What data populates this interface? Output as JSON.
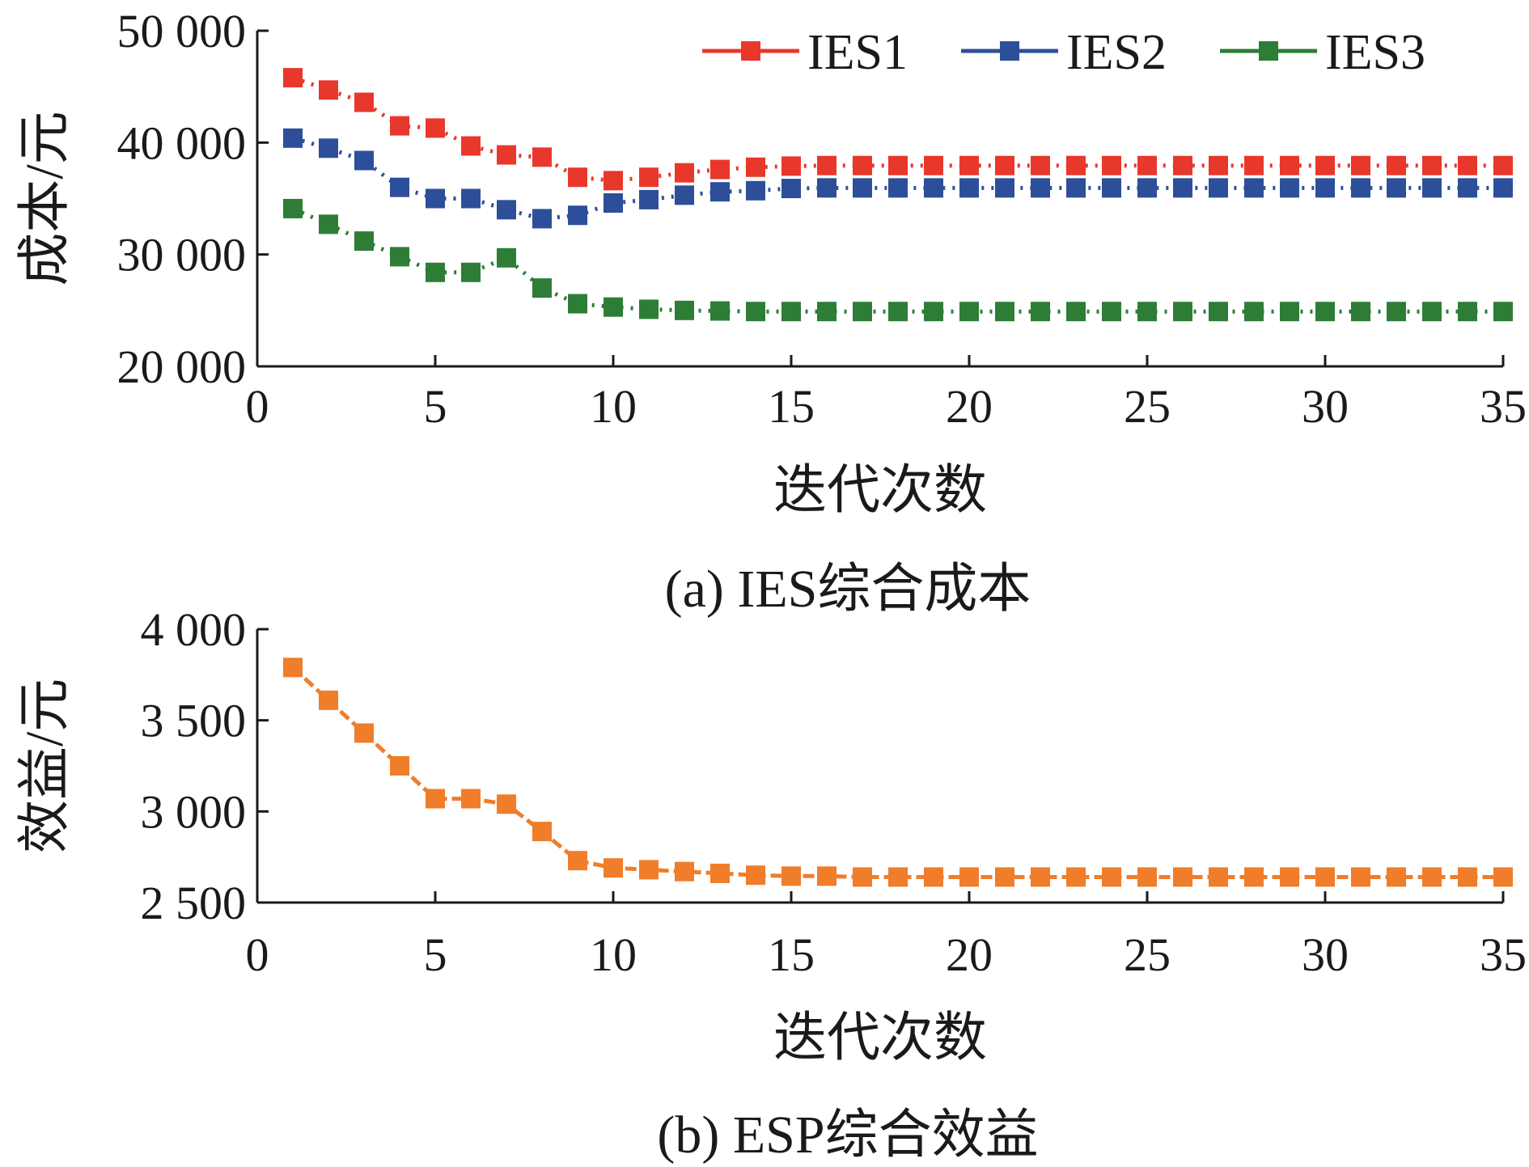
{
  "chart_data": [
    {
      "type": "line",
      "caption": "(a) IES综合成本",
      "xlabel": "迭代次数",
      "ylabel": "成本/元",
      "xlim": [
        0,
        35
      ],
      "ylim": [
        20000,
        50000
      ],
      "x_ticks": [
        "0",
        "5",
        "10",
        "15",
        "20",
        "25",
        "30",
        "35"
      ],
      "y_ticks": [
        "20 000",
        "30 000",
        "40 000",
        "50 000"
      ],
      "legend_position": "top-right",
      "grid": false,
      "x": [
        1,
        2,
        3,
        4,
        5,
        6,
        7,
        8,
        9,
        10,
        11,
        12,
        13,
        14,
        15,
        16,
        17,
        18,
        19,
        20,
        21,
        22,
        23,
        24,
        25,
        26,
        27,
        28,
        29,
        30,
        31,
        32,
        33,
        34,
        35
      ],
      "series": [
        {
          "name": "IES1",
          "color": "#e8382b",
          "values": [
            45800,
            44700,
            43600,
            41500,
            41300,
            39700,
            38900,
            38700,
            36900,
            36600,
            36900,
            37300,
            37600,
            37800,
            37900,
            37950,
            37950,
            37950,
            37950,
            37950,
            37950,
            37950,
            37950,
            37950,
            37950,
            37950,
            37950,
            37950,
            37950,
            37950,
            37950,
            37950,
            37950,
            37950,
            37950
          ]
        },
        {
          "name": "IES2",
          "color": "#2d4f9a",
          "values": [
            40400,
            39500,
            38400,
            36000,
            35000,
            35000,
            34000,
            33200,
            33500,
            34600,
            34900,
            35300,
            35600,
            35700,
            35900,
            35950,
            35950,
            35950,
            35950,
            35950,
            35950,
            35950,
            35950,
            35950,
            35950,
            35950,
            35950,
            35950,
            35950,
            35950,
            35950,
            35950,
            35950,
            35950,
            35950
          ]
        },
        {
          "name": "IES3",
          "color": "#2e7d37",
          "values": [
            34100,
            32700,
            31200,
            29800,
            28400,
            28400,
            29700,
            27000,
            25600,
            25300,
            25100,
            25000,
            24950,
            24900,
            24900,
            24900,
            24900,
            24900,
            24900,
            24900,
            24900,
            24900,
            24900,
            24900,
            24900,
            24900,
            24900,
            24900,
            24900,
            24900,
            24900,
            24900,
            24900,
            24900,
            24900
          ]
        }
      ]
    },
    {
      "type": "line",
      "caption": "(b) ESP综合效益",
      "xlabel": "迭代次数",
      "ylabel": "效益/元",
      "xlim": [
        0,
        35
      ],
      "ylim": [
        2500,
        4000
      ],
      "x_ticks": [
        "0",
        "5",
        "10",
        "15",
        "20",
        "25",
        "30",
        "35"
      ],
      "y_ticks": [
        "2 500",
        "3 000",
        "3 500",
        "4 000"
      ],
      "grid": false,
      "x": [
        1,
        2,
        3,
        4,
        5,
        6,
        7,
        8,
        9,
        10,
        11,
        12,
        13,
        14,
        15,
        16,
        17,
        18,
        19,
        20,
        21,
        22,
        23,
        24,
        25,
        26,
        27,
        28,
        29,
        30,
        31,
        32,
        33,
        34,
        35
      ],
      "series": [
        {
          "color": "#ef7d2a",
          "values": [
            3790,
            3610,
            3430,
            3250,
            3070,
            3070,
            3040,
            2890,
            2730,
            2690,
            2680,
            2670,
            2660,
            2650,
            2645,
            2645,
            2640,
            2640,
            2640,
            2640,
            2640,
            2640,
            2640,
            2640,
            2640,
            2640,
            2640,
            2640,
            2640,
            2640,
            2640,
            2640,
            2640,
            2640,
            2640
          ]
        }
      ]
    }
  ]
}
